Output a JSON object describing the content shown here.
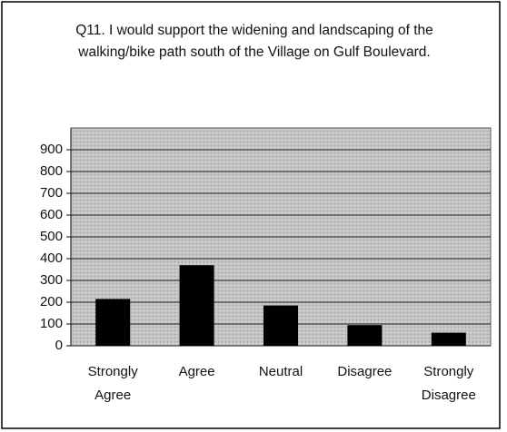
{
  "chart_data": {
    "type": "bar",
    "title": "Q11. I would support the widening and landscaping of the walking/bike path south of the Village on Gulf Boulevard.",
    "categories": [
      "Strongly Agree",
      "Agree",
      "Neutral",
      "Disagree",
      "Strongly Disagree"
    ],
    "values": [
      215,
      370,
      185,
      95,
      60
    ],
    "color": "#000000",
    "ylim": [
      0,
      1000
    ],
    "yticks": [
      0,
      100,
      200,
      300,
      400,
      500,
      600,
      700,
      800,
      900
    ],
    "grid": true
  }
}
